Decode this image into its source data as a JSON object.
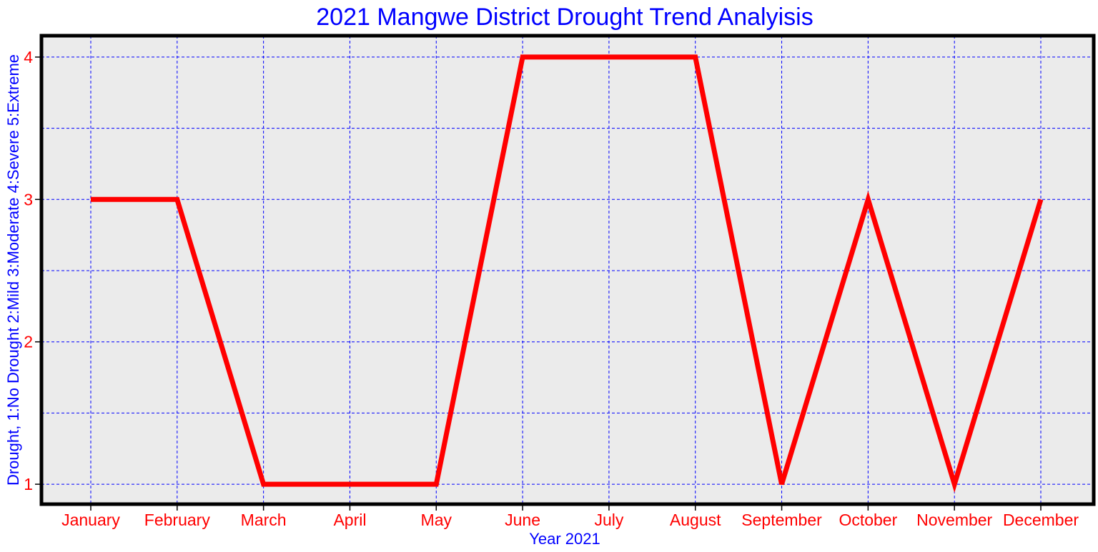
{
  "chart_data": {
    "type": "line",
    "title": "2021 Mangwe District Drought Trend Analyisis",
    "xlabel": "Year 2021",
    "ylabel": "Drought, 1:No Drought 2:Mild 3:Moderate 4:Severe 5:Extreme",
    "categories": [
      "January",
      "February",
      "March",
      "April",
      "May",
      "June",
      "July",
      "August",
      "September",
      "October",
      "November",
      "December"
    ],
    "series": [
      {
        "values": [
          3,
          3,
          1,
          1,
          1,
          4,
          4,
          4,
          1,
          3,
          1,
          3
        ],
        "color": "#ff0000"
      }
    ],
    "ylim": [
      0.86,
      4.15
    ],
    "yticks": [
      1,
      2,
      3,
      4
    ],
    "ygrid": [
      1,
      1.5,
      2,
      2.5,
      3,
      3.5,
      4
    ],
    "grid": true,
    "grid_color": "#0000ff",
    "background_color": "#ebebeb",
    "title_color": "#0000ff",
    "tick_label_color": "#ff0000",
    "axis_label_color": "#0000ff"
  }
}
